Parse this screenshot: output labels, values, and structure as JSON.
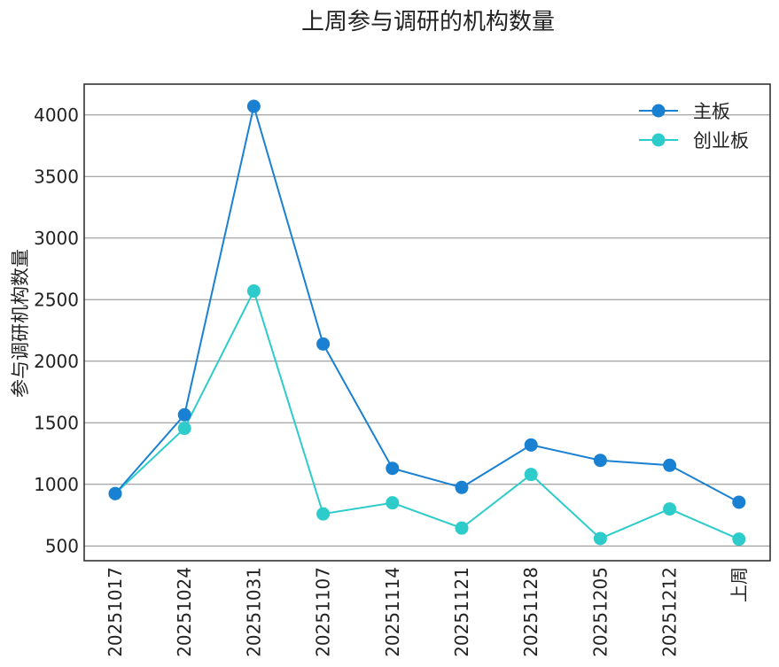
{
  "chart_data": {
    "type": "line",
    "title": "上周参与调研的机构数量",
    "xlabel": "",
    "ylabel": "参与调研机构数量",
    "categories": [
      "20251017",
      "20251024",
      "20251031",
      "20251107",
      "20251114",
      "20251121",
      "20251128",
      "20251205",
      "20251212",
      "上周"
    ],
    "series": [
      {
        "name": "主板",
        "color": "#1a80d2",
        "values": [
          925,
          1565,
          4070,
          2140,
          1130,
          975,
          1320,
          1195,
          1155,
          855
        ]
      },
      {
        "name": "创业板",
        "color": "#2ecbcb",
        "values": [
          925,
          1455,
          2570,
          760,
          850,
          645,
          1080,
          560,
          800,
          555
        ]
      }
    ],
    "yticks": [
      500,
      1000,
      1500,
      2000,
      2500,
      3000,
      3500,
      4000
    ],
    "ylim": [
      380,
      4250
    ],
    "grid": "horizontal",
    "legend_position": "top-right"
  }
}
